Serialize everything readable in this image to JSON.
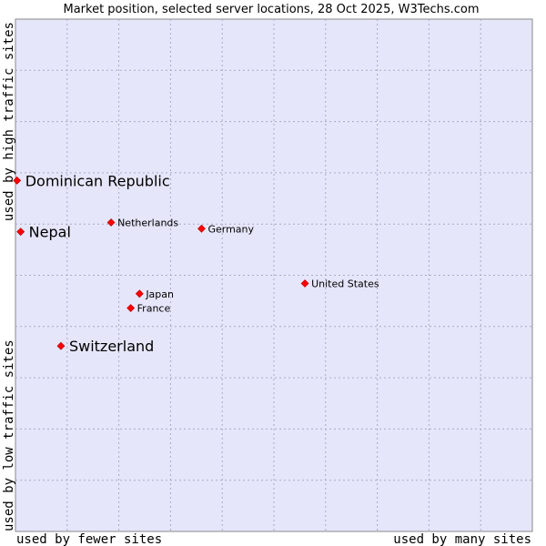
{
  "chart_data": {
    "type": "scatter",
    "title": "Market position, selected server locations, 28 Oct 2025, W3Techs.com",
    "xlabel_left": "used by fewer sites",
    "xlabel_right": "used by many sites",
    "ylabel_low": "used by low traffic sites",
    "ylabel_high": "used by high traffic sites",
    "xlim": [
      0,
      100
    ],
    "ylim": [
      0,
      100
    ],
    "grid": true,
    "point_color": "#ff0000",
    "plot_background": "#e6e6fa",
    "points": [
      {
        "label": "Dominican Republic",
        "x": 0.3,
        "y": 68.5,
        "emphasis": true
      },
      {
        "label": "Nepal",
        "x": 1.0,
        "y": 58.5,
        "emphasis": true
      },
      {
        "label": "Switzerland",
        "x": 8.8,
        "y": 36.2,
        "emphasis": true
      },
      {
        "label": "Netherlands",
        "x": 18.5,
        "y": 60.3,
        "emphasis": false
      },
      {
        "label": "Germany",
        "x": 36.0,
        "y": 59.1,
        "emphasis": false
      },
      {
        "label": "United States",
        "x": 56.0,
        "y": 48.4,
        "emphasis": false
      },
      {
        "label": "Japan",
        "x": 24.0,
        "y": 46.4,
        "emphasis": false
      },
      {
        "label": "France",
        "x": 22.3,
        "y": 43.6,
        "emphasis": false
      }
    ]
  }
}
